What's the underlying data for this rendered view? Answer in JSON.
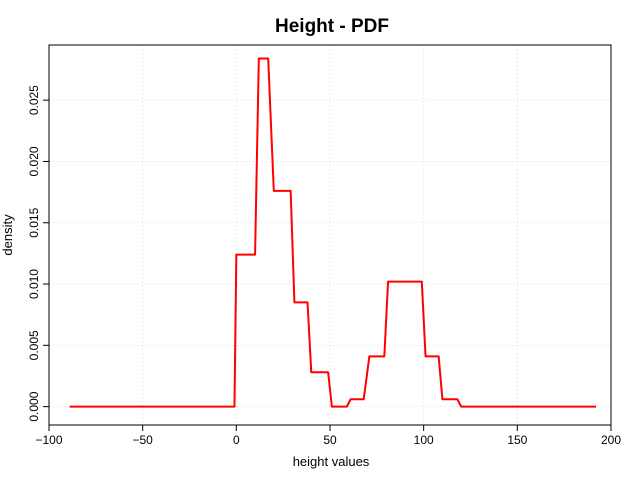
{
  "chart_data": {
    "type": "line",
    "title": "Height - PDF",
    "xlabel": "height values",
    "ylabel": "density",
    "xlim": [
      -100,
      200
    ],
    "ylim": [
      -0.0015,
      0.0295
    ],
    "xticks": [
      -100,
      -50,
      0,
      50,
      100,
      150,
      200
    ],
    "xtick_labels": [
      "−100",
      "−50",
      "0",
      "50",
      "100",
      "150",
      "200"
    ],
    "yticks": [
      0,
      0.005,
      0.01,
      0.015,
      0.02,
      0.025
    ],
    "ytick_labels": [
      "0.000",
      "0.005",
      "0.010",
      "0.015",
      "0.020",
      "0.025"
    ],
    "grid": true,
    "series": [
      {
        "color": "#ff0000",
        "x": [
          -89,
          -1,
          0,
          10,
          12,
          17,
          20,
          29,
          31,
          38,
          40,
          49,
          51,
          59,
          61,
          68,
          71,
          79,
          81,
          99,
          101,
          108,
          110,
          118,
          120,
          192
        ],
        "y": [
          0,
          0,
          0.0124,
          0.0124,
          0.0284,
          0.0284,
          0.0176,
          0.0176,
          0.0085,
          0.0085,
          0.0028,
          0.0028,
          0,
          0,
          0.0006,
          0.0006,
          0.0041,
          0.0041,
          0.0102,
          0.0102,
          0.0041,
          0.0041,
          0.0006,
          0.0006,
          0,
          0
        ]
      }
    ]
  }
}
